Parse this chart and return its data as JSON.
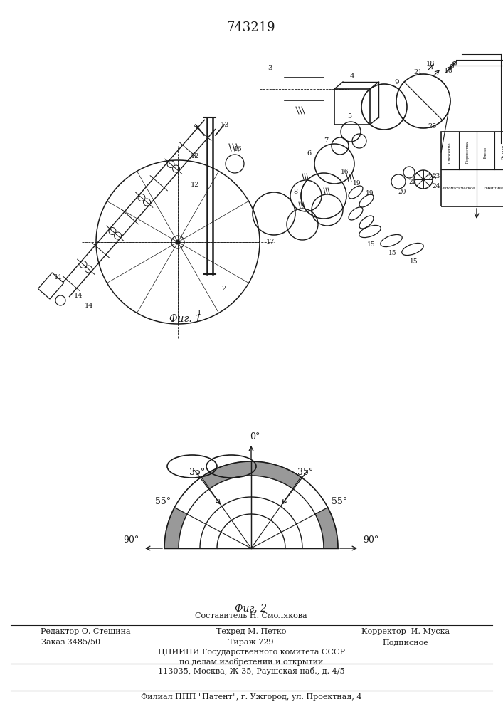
{
  "patent_number": "743219",
  "fig1_caption": "Фиг. 1",
  "fig2_caption": "Фиг. 2",
  "footer_sestavitel": "Составитель Н. Смолякова",
  "footer_redaktor": "Редактор О. Стешина",
  "footer_tehred": "Техред М. Петко",
  "footer_korrektor": "Корректор  И. Муска",
  "footer_zakaz": "Заказ 3485/50",
  "footer_tirazh": "Тираж 729",
  "footer_podpisnoe": "Подписное",
  "footer_cniipи": "ЦНИИПИ Государственного комитета СССР",
  "footer_po_delam": "по делам изобретений и открытий",
  "footer_address": "113035, Москва, Ж-35, Раушская наб., д. 4/5",
  "footer_filial": "Филиал ППП \"Патент\", г. Ужгород, ул. Проектная, 4",
  "lc": "#1a1a1a",
  "shading_color": "#777777",
  "box_labels_top": [
    "Слежение",
    "Перемотка",
    "Влево",
    "Вправо"
  ],
  "box_labels_bot": [
    "Автоматическое",
    "Внешнее"
  ]
}
